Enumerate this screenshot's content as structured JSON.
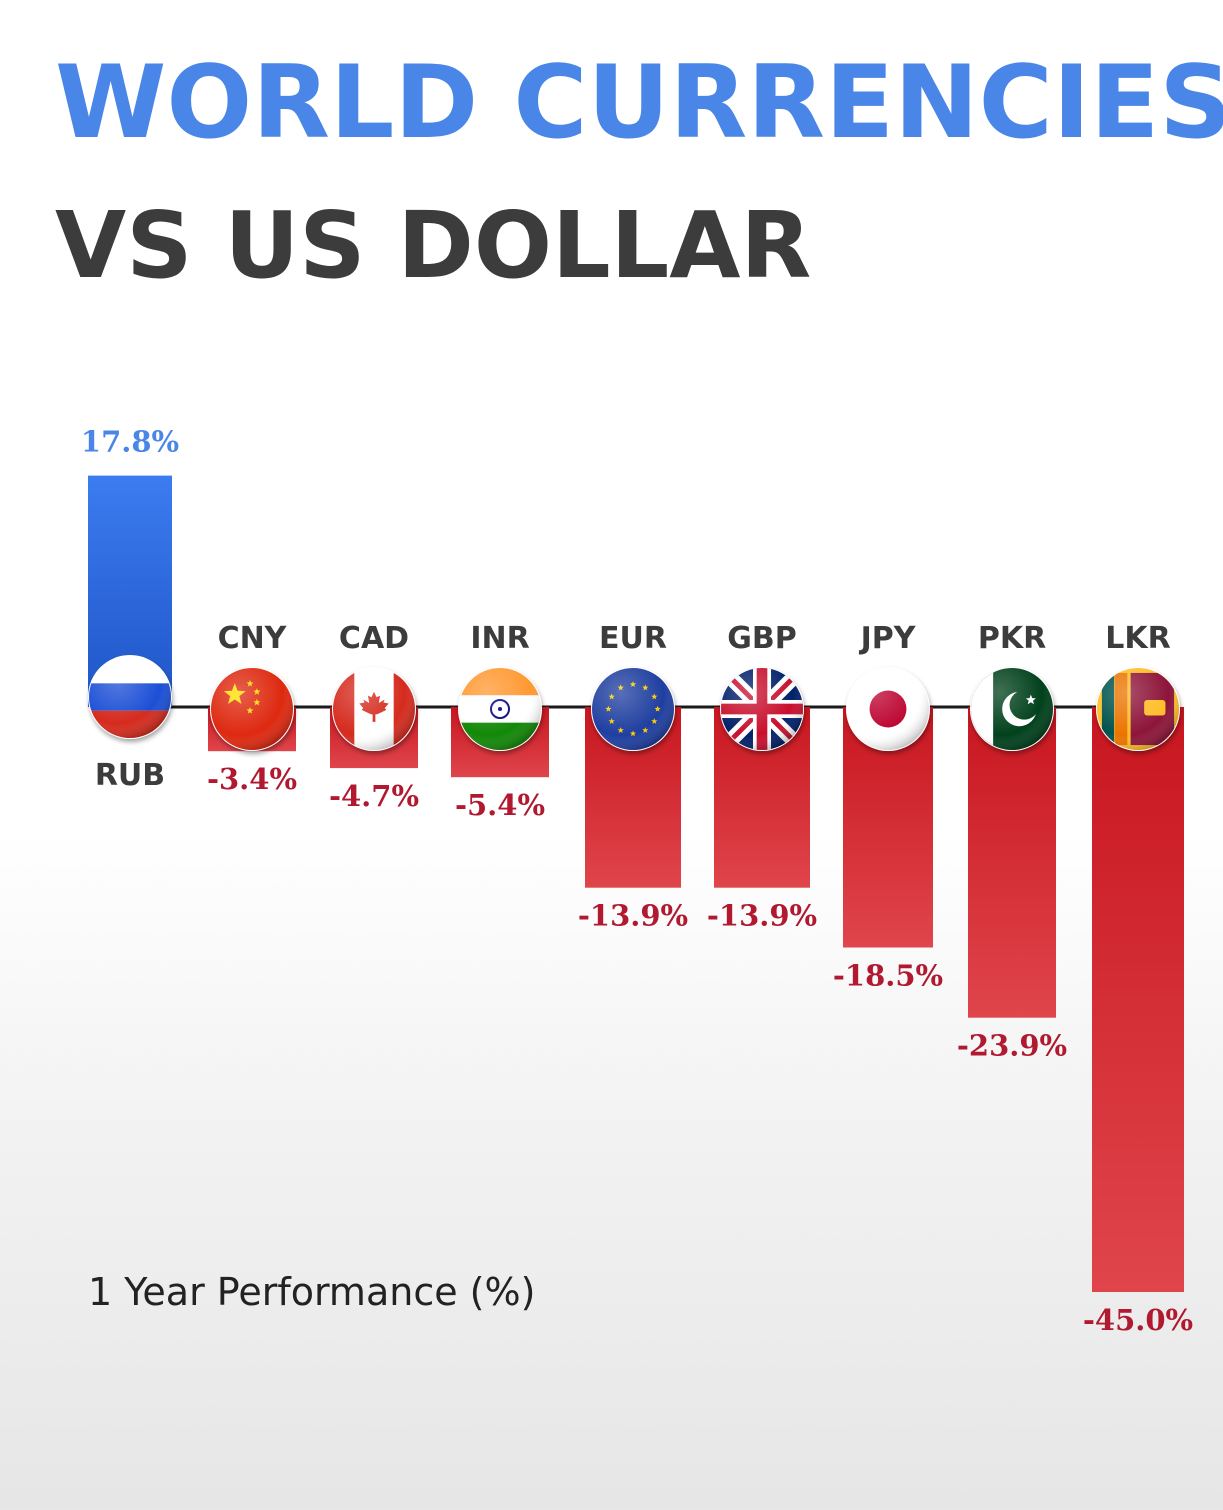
{
  "title": "WORLD CURRENCIES",
  "subtitle": "VS US DOLLAR",
  "footnote": "1 Year Performance (%)",
  "colors": {
    "title": "#4a86e8",
    "subtitle": "#3c3c3c",
    "positive": "#2f6ee0",
    "positive_label": "#4a86e8",
    "negative": "#d42a33",
    "negative_label": "#b0192f"
  },
  "chart_data": {
    "type": "bar",
    "ylim": [
      -45,
      17.8
    ],
    "categories": [
      "RUB",
      "CNY",
      "CAD",
      "INR",
      "EUR",
      "GBP",
      "JPY",
      "PKR",
      "LKR"
    ],
    "values": [
      17.8,
      -3.4,
      -4.7,
      -5.4,
      -13.9,
      -13.9,
      -18.5,
      -23.9,
      -45.0
    ],
    "value_labels": [
      "17.8%",
      "-3.4%",
      "-4.7%",
      "-5.4%",
      "-13.9%",
      "-13.9%",
      "-18.5%",
      "-23.9%",
      "-45.0%"
    ],
    "flag_icons": [
      "russia-flag-icon",
      "china-flag-icon",
      "canada-flag-icon",
      "india-flag-icon",
      "eu-flag-icon",
      "uk-flag-icon",
      "japan-flag-icon",
      "pakistan-flag-icon",
      "sri-lanka-flag-icon"
    ],
    "grid": false,
    "legend": "none"
  }
}
